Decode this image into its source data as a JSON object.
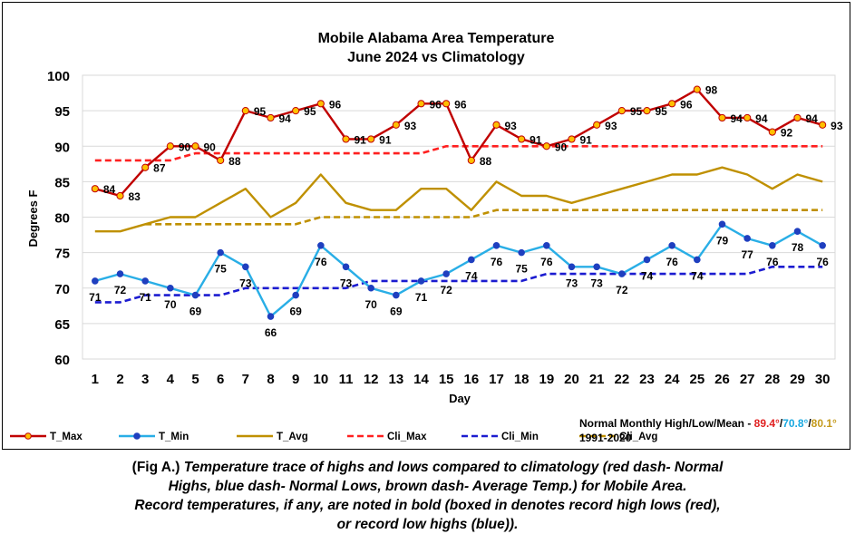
{
  "chart_data": {
    "type": "line",
    "title": "Mobile Alabama Area Temperature",
    "subtitle": "June 2024 vs Climatology",
    "xlabel": "Day",
    "ylabel": "Degrees F",
    "ylim": [
      60,
      100
    ],
    "yticks": [
      60,
      65,
      70,
      75,
      80,
      85,
      90,
      95,
      100
    ],
    "grid": true,
    "legend_position": "bottom",
    "x": [
      1,
      2,
      3,
      4,
      5,
      6,
      7,
      8,
      9,
      10,
      11,
      12,
      13,
      14,
      15,
      16,
      17,
      18,
      19,
      20,
      21,
      22,
      23,
      24,
      25,
      26,
      27,
      28,
      29,
      30
    ],
    "series": [
      {
        "name": "T_Max",
        "color": "#c00000",
        "dash": false,
        "marker": "#ffc000",
        "labels": true,
        "values": [
          84,
          83,
          87,
          90,
          90,
          88,
          95,
          94,
          95,
          96,
          91,
          91,
          93,
          96,
          96,
          88,
          93,
          91,
          90,
          91,
          93,
          95,
          95,
          96,
          98,
          94,
          94,
          92,
          94,
          93
        ]
      },
      {
        "name": "T_Min",
        "color": "#29aee6",
        "dash": false,
        "marker": "#1f3fbf",
        "labels": true,
        "values": [
          71,
          72,
          71,
          70,
          69,
          75,
          73,
          66,
          69,
          76,
          73,
          70,
          69,
          71,
          72,
          74,
          76,
          75,
          76,
          73,
          73,
          72,
          74,
          76,
          74,
          79,
          77,
          76,
          78,
          76
        ]
      },
      {
        "name": "T_Avg",
        "color": "#bf9000",
        "dash": false,
        "marker": null,
        "labels": false,
        "values": [
          78,
          78,
          79,
          80,
          80,
          82,
          84,
          80,
          82,
          86,
          82,
          81,
          81,
          84,
          84,
          81,
          85,
          83,
          83,
          82,
          83,
          84,
          85,
          86,
          86,
          87,
          86,
          84,
          86,
          85
        ]
      },
      {
        "name": "Cli_Max",
        "color": "#ff2020",
        "dash": true,
        "marker": null,
        "labels": false,
        "values": [
          88,
          88,
          88,
          88,
          89,
          89,
          89,
          89,
          89,
          89,
          89,
          89,
          89,
          89,
          90,
          90,
          90,
          90,
          90,
          90,
          90,
          90,
          90,
          90,
          90,
          90,
          90,
          90,
          90,
          90
        ]
      },
      {
        "name": "Cli_Min",
        "color": "#1c1cd0",
        "dash": true,
        "marker": null,
        "labels": false,
        "values": [
          68,
          68,
          69,
          69,
          69,
          69,
          70,
          70,
          70,
          70,
          70,
          71,
          71,
          71,
          71,
          71,
          71,
          71,
          72,
          72,
          72,
          72,
          72,
          72,
          72,
          72,
          72,
          73,
          73,
          73
        ]
      },
      {
        "name": "Cli_Avg",
        "color": "#bf9000",
        "dash": true,
        "marker": null,
        "labels": false,
        "values": [
          null,
          null,
          79,
          79,
          79,
          79,
          79,
          79,
          79,
          80,
          80,
          80,
          80,
          80,
          80,
          80,
          81,
          81,
          81,
          81,
          81,
          81,
          81,
          81,
          81,
          81,
          81,
          81,
          81,
          81
        ]
      }
    ]
  },
  "normals": {
    "prefix": "Normal Monthly High/Low/Mean - ",
    "high": "89.4°",
    "low": "70.8°",
    "mean": "80.1°",
    "sep": "/",
    "period": "1991-2020"
  },
  "caption": {
    "fig": "(Fig A.) ",
    "line1": "Temperature trace of highs and lows compared to climatology (red dash- Normal",
    "line2": "Highs, blue dash- Normal Lows, brown dash- Average Temp.) for Mobile Area.",
    "line3": "Record temperatures, if any, are noted in bold (boxed in denotes record high lows (red),",
    "line4": "or record low highs (blue))."
  }
}
